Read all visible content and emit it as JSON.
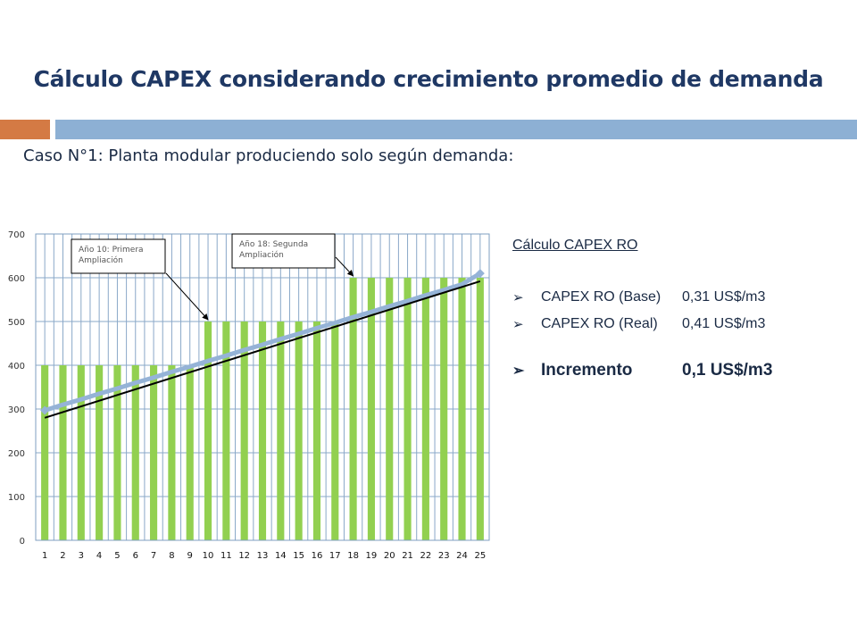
{
  "title": "Cálculo CAPEX considerando crecimiento promedio de demanda",
  "subtitle": "Caso N°1: Planta modular produciendo solo según demanda:",
  "colors": {
    "title": "#1f3864",
    "accent_orange": "#d47a44",
    "accent_blue": "#8db0d4",
    "bar": "#92d050",
    "demand_line": "#95b3d7",
    "trend_line": "#000000"
  },
  "chart_data": {
    "type": "bar",
    "categories": [
      "1",
      "2",
      "3",
      "4",
      "5",
      "6",
      "7",
      "8",
      "9",
      "10",
      "11",
      "12",
      "13",
      "14",
      "15",
      "16",
      "17",
      "18",
      "19",
      "20",
      "21",
      "22",
      "23",
      "24",
      "25"
    ],
    "series": [
      {
        "type": "bar",
        "values": [
          400,
          400,
          400,
          400,
          400,
          400,
          400,
          400,
          400,
          500,
          500,
          500,
          500,
          500,
          500,
          500,
          500,
          600,
          600,
          600,
          600,
          600,
          600,
          600,
          600
        ]
      },
      {
        "type": "line",
        "values": [
          297,
          310,
          322,
          335,
          347,
          360,
          372,
          385,
          397,
          410,
          422,
          435,
          447,
          460,
          472,
          485,
          497,
          510,
          522,
          535,
          547,
          560,
          572,
          585,
          610
        ]
      },
      {
        "type": "trendline",
        "values": [
          280,
          293,
          306,
          319,
          332,
          345,
          358,
          371,
          384,
          397,
          410,
          423,
          436,
          449,
          462,
          475,
          488,
          501,
          514,
          527,
          540,
          553,
          566,
          579,
          592
        ]
      }
    ],
    "yticks": [
      "0",
      "100",
      "200",
      "300",
      "400",
      "500",
      "600",
      "700"
    ],
    "ylim": [
      0,
      700
    ],
    "grid": true,
    "annotations": [
      {
        "text_lines": [
          "Año 10: Primera",
          "Ampliación"
        ],
        "points_to_category": "10"
      },
      {
        "text_lines": [
          "Año 18: Segunda",
          "Ampliación"
        ],
        "points_to_category": "18"
      }
    ]
  },
  "side_panel": {
    "heading": "Cálculo CAPEX RO",
    "rows": [
      {
        "bullet": "➢",
        "label": "CAPEX RO (Base)",
        "value": "0,31 US$/m3"
      },
      {
        "bullet": "➢",
        "label": "CAPEX RO (Real)",
        "value": "0,41 US$/m3"
      }
    ],
    "highlight": {
      "bullet": "➢",
      "label": "Incremento",
      "value": "0,1 US$/m3"
    }
  }
}
